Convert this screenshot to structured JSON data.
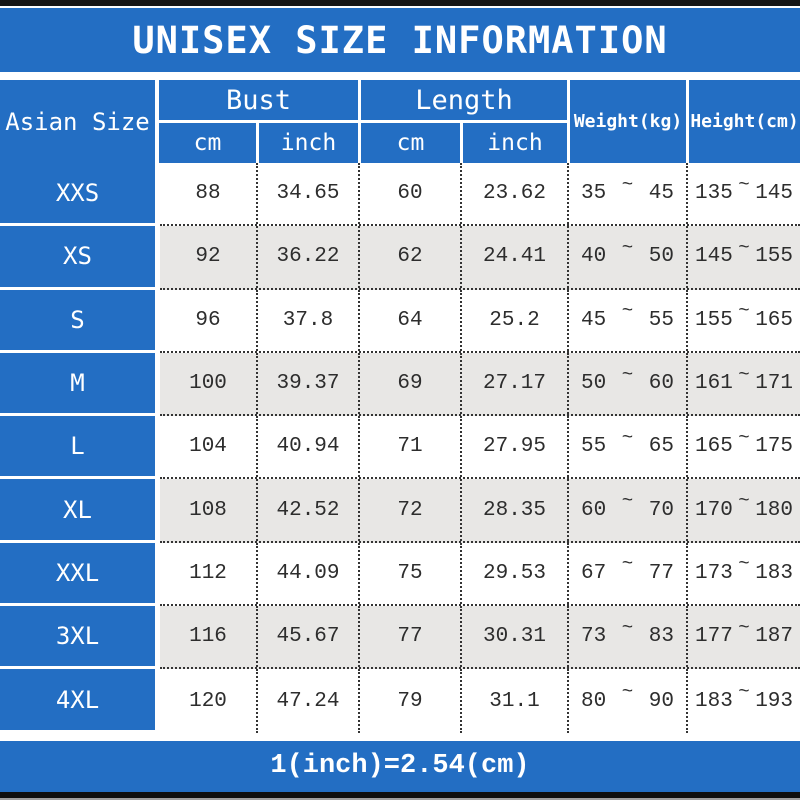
{
  "title": "UNISEX SIZE INFORMATION",
  "footer_note": "1(inch)=2.54(cm)",
  "colors": {
    "accent_blue": "#236ec3",
    "row_alt_gray": "#e8e7e5",
    "bar_black": "#161616",
    "text_dark": "#2d2d2d"
  },
  "table": {
    "corner_header": "Asian Size",
    "groups": [
      {
        "label": "Bust",
        "subcolumns": [
          "cm",
          "inch"
        ]
      },
      {
        "label": "Length",
        "subcolumns": [
          "cm",
          "inch"
        ]
      }
    ],
    "span_headers": [
      "Weight(kg)",
      "Height(cm)"
    ],
    "tilde": "~",
    "rows": [
      {
        "size": "XXS",
        "bust_cm": "88",
        "bust_inch": "34.65",
        "length_cm": "60",
        "length_inch": "23.62",
        "weight_min": "35",
        "weight_max": "45",
        "height_min": "135",
        "height_max": "145"
      },
      {
        "size": "XS",
        "bust_cm": "92",
        "bust_inch": "36.22",
        "length_cm": "62",
        "length_inch": "24.41",
        "weight_min": "40",
        "weight_max": "50",
        "height_min": "145",
        "height_max": "155"
      },
      {
        "size": "S",
        "bust_cm": "96",
        "bust_inch": "37.8",
        "length_cm": "64",
        "length_inch": "25.2",
        "weight_min": "45",
        "weight_max": "55",
        "height_min": "155",
        "height_max": "165"
      },
      {
        "size": "M",
        "bust_cm": "100",
        "bust_inch": "39.37",
        "length_cm": "69",
        "length_inch": "27.17",
        "weight_min": "50",
        "weight_max": "60",
        "height_min": "161",
        "height_max": "171"
      },
      {
        "size": "L",
        "bust_cm": "104",
        "bust_inch": "40.94",
        "length_cm": "71",
        "length_inch": "27.95",
        "weight_min": "55",
        "weight_max": "65",
        "height_min": "165",
        "height_max": "175"
      },
      {
        "size": "XL",
        "bust_cm": "108",
        "bust_inch": "42.52",
        "length_cm": "72",
        "length_inch": "28.35",
        "weight_min": "60",
        "weight_max": "70",
        "height_min": "170",
        "height_max": "180"
      },
      {
        "size": "XXL",
        "bust_cm": "112",
        "bust_inch": "44.09",
        "length_cm": "75",
        "length_inch": "29.53",
        "weight_min": "67",
        "weight_max": "77",
        "height_min": "173",
        "height_max": "183"
      },
      {
        "size": "3XL",
        "bust_cm": "116",
        "bust_inch": "45.67",
        "length_cm": "77",
        "length_inch": "30.31",
        "weight_min": "73",
        "weight_max": "83",
        "height_min": "177",
        "height_max": "187"
      },
      {
        "size": "4XL",
        "bust_cm": "120",
        "bust_inch": "47.24",
        "length_cm": "79",
        "length_inch": "31.1",
        "weight_min": "80",
        "weight_max": "90",
        "height_min": "183",
        "height_max": "193"
      }
    ]
  },
  "chart_data": {
    "type": "table",
    "title": "UNISEX SIZE INFORMATION",
    "columns": [
      "Asian Size",
      "Bust cm",
      "Bust inch",
      "Length cm",
      "Length inch",
      "Weight(kg)",
      "Height(cm)"
    ],
    "rows": [
      [
        "XXS",
        88,
        34.65,
        60,
        23.62,
        "35~45",
        "135~145"
      ],
      [
        "XS",
        92,
        36.22,
        62,
        24.41,
        "40~50",
        "145~155"
      ],
      [
        "S",
        96,
        37.8,
        64,
        25.2,
        "45~55",
        "155~165"
      ],
      [
        "M",
        100,
        39.37,
        69,
        27.17,
        "50~60",
        "161~171"
      ],
      [
        "L",
        104,
        40.94,
        71,
        27.95,
        "55~65",
        "165~175"
      ],
      [
        "XL",
        108,
        42.52,
        72,
        28.35,
        "60~70",
        "170~180"
      ],
      [
        "XXL",
        112,
        44.09,
        75,
        29.53,
        "67~77",
        "173~183"
      ],
      [
        "3XL",
        116,
        45.67,
        77,
        30.31,
        "73~83",
        "177~187"
      ],
      [
        "4XL",
        120,
        47.24,
        79,
        31.1,
        "80~90",
        "183~193"
      ]
    ],
    "footnote": "1(inch)=2.54(cm)",
    "layout": {
      "header_background": "#236ec3",
      "alternating_rows": true,
      "grid": "dotted"
    }
  }
}
